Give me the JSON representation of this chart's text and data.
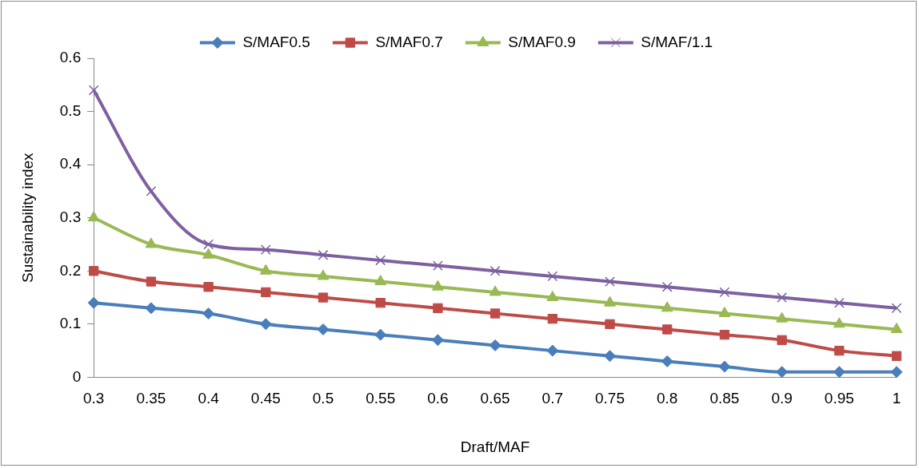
{
  "chart_data": {
    "type": "line",
    "xlabel": "Draft/MAF",
    "ylabel": "Sustainability index",
    "categories": [
      "0.3",
      "0.35",
      "0.4",
      "0.45",
      "0.5",
      "0.55",
      "0.6",
      "0.65",
      "0.7",
      "0.75",
      "0.8",
      "0.85",
      "0.9",
      "0.95",
      "1"
    ],
    "series": [
      {
        "name": "S/MAF0.5",
        "color": "#4a7ebb",
        "marker": "diamond",
        "values": [
          0.14,
          0.13,
          0.12,
          0.1,
          0.09,
          0.08,
          0.07,
          0.06,
          0.05,
          0.04,
          0.03,
          0.02,
          0.01,
          0.01,
          0.01
        ]
      },
      {
        "name": "S/MAF0.7",
        "color": "#be4b48",
        "marker": "square",
        "values": [
          0.2,
          0.18,
          0.17,
          0.16,
          0.15,
          0.14,
          0.13,
          0.12,
          0.11,
          0.1,
          0.09,
          0.08,
          0.07,
          0.05,
          0.04
        ]
      },
      {
        "name": "S/MAF0.9",
        "color": "#98b954",
        "marker": "triangle",
        "values": [
          0.3,
          0.25,
          0.23,
          0.2,
          0.19,
          0.18,
          0.17,
          0.16,
          0.15,
          0.14,
          0.13,
          0.12,
          0.11,
          0.1,
          0.09
        ]
      },
      {
        "name": "S/MAF/1.1",
        "color": "#7d60a0",
        "marker": "cross",
        "values": [
          0.54,
          0.35,
          0.25,
          0.24,
          0.23,
          0.22,
          0.21,
          0.2,
          0.19,
          0.18,
          0.17,
          0.16,
          0.15,
          0.14,
          0.13
        ]
      }
    ],
    "ylim": [
      0,
      0.6
    ],
    "yticks": [
      0,
      0.1,
      0.2,
      0.3,
      0.4,
      0.5,
      0.6
    ],
    "grid": false,
    "legend": "top"
  }
}
